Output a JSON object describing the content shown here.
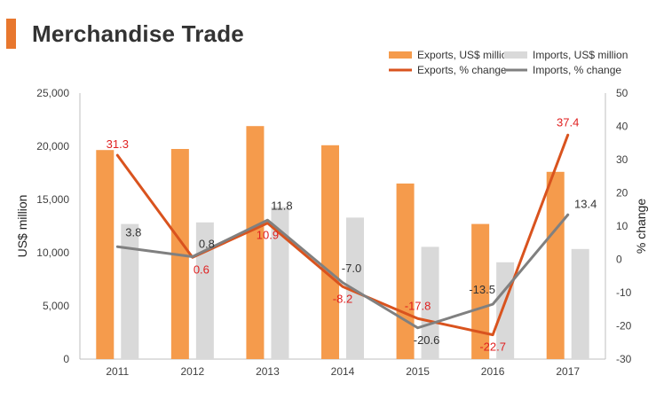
{
  "header": {
    "title": "Merchandise Trade",
    "accent_color": "#e8772e"
  },
  "chart_data": {
    "type": "bar",
    "title": "",
    "categories": [
      "2011",
      "2012",
      "2013",
      "2014",
      "2015",
      "2016",
      "2017"
    ],
    "ylabel": "US$ million",
    "y2label": "% change",
    "ylim": [
      0,
      25000
    ],
    "y2lim": [
      -30,
      50
    ],
    "yticks": [
      "0",
      "5,000",
      "10,000",
      "15,000",
      "20,000",
      "25,000"
    ],
    "y2ticks": [
      "-30",
      "-20",
      "-10",
      "0",
      "10",
      "20",
      "30",
      "40",
      "50"
    ],
    "grid": false,
    "legend_position": "top-right",
    "series": [
      {
        "name": "Exports, US$ million",
        "kind": "bar",
        "axis": "left",
        "color": "#f59b4c",
        "values": [
          19650,
          19750,
          21900,
          20100,
          16500,
          12700,
          17600
        ]
      },
      {
        "name": "Imports, US$ million",
        "kind": "bar",
        "axis": "left",
        "color": "#d9d9d9",
        "values": [
          12700,
          12850,
          14300,
          13300,
          10550,
          9100,
          10350
        ]
      },
      {
        "name": "Exports, % change",
        "kind": "line",
        "axis": "right",
        "color": "#d9531e",
        "values": [
          31.3,
          0.6,
          10.9,
          -8.2,
          -17.8,
          -22.7,
          37.4
        ],
        "labels": [
          "31.3",
          "0.6",
          "10.9",
          "-8.2",
          "-17.8",
          "-22.7",
          "37.4"
        ],
        "label_color": "#e02020"
      },
      {
        "name": "Imports, % change",
        "kind": "line",
        "axis": "right",
        "color": "#808080",
        "values": [
          3.8,
          0.8,
          11.8,
          -7.0,
          -20.6,
          -13.5,
          13.4
        ],
        "labels": [
          "3.8",
          "0.8",
          "11.8",
          "-7.0",
          "-20.6",
          "-13.5",
          "13.4"
        ],
        "label_color": "#333333"
      }
    ]
  }
}
